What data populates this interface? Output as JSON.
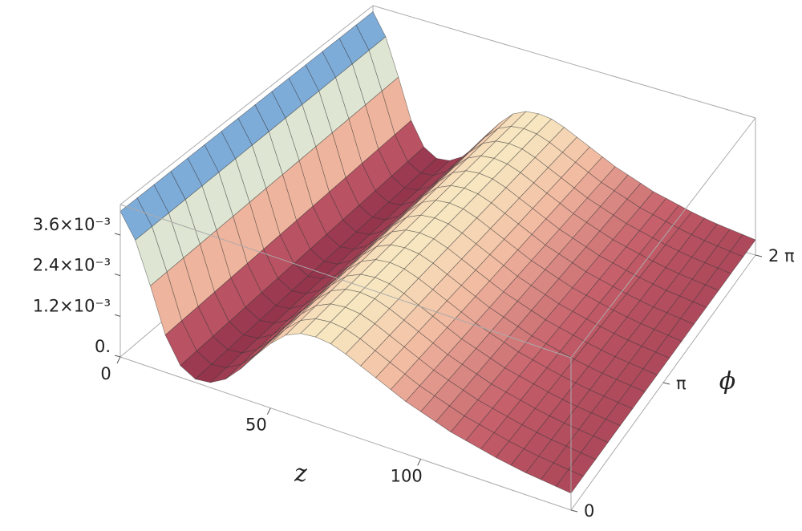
{
  "chart_data": {
    "type": "surface3d",
    "x_label": "z",
    "y_label": "ϕ",
    "x": [
      0,
      5,
      10,
      15,
      20,
      25,
      30,
      35,
      40,
      45,
      50,
      55,
      60,
      65,
      70,
      75,
      80,
      85,
      90,
      95,
      100,
      105,
      110,
      115,
      120,
      125,
      130,
      135,
      140,
      145,
      150
    ],
    "values": [
      0.0043,
      0.0036,
      0.0024,
      0.0011,
      0.00035,
      0.0001,
      0.00015,
      0.0004,
      0.00085,
      0.0014,
      0.0019,
      0.0023,
      0.0025,
      0.00255,
      0.0025,
      0.00235,
      0.00215,
      0.00195,
      0.00175,
      0.00155,
      0.0014,
      0.00125,
      0.0011,
      0.001,
      0.0009,
      0.0008,
      0.00072,
      0.00065,
      0.0006,
      0.00055,
      0.0005
    ],
    "xlim": [
      0,
      150
    ],
    "xticks": [
      0,
      50,
      100
    ],
    "ylim": [
      0,
      6.2832
    ],
    "yticks": [
      0,
      {
        "value": 3.1416,
        "label": "π"
      },
      {
        "value": 6.2832,
        "label": "2 π"
      }
    ],
    "zlim": [
      0,
      0.0045
    ],
    "zticks": [
      {
        "value": 0,
        "label": "0."
      },
      {
        "value": 0.0012,
        "label": "1.2×10⁻³"
      },
      {
        "value": 0.0024,
        "label": "2.4×10⁻³"
      },
      {
        "value": 0.0036,
        "label": "3.6×10⁻³"
      }
    ],
    "colormap": [
      "#8e2f48",
      "#c35b68",
      "#f2b9a0",
      "#f8f1c8",
      "#a9d0e8",
      "#3a74c2"
    ],
    "box_color": "#aaaaaa"
  }
}
